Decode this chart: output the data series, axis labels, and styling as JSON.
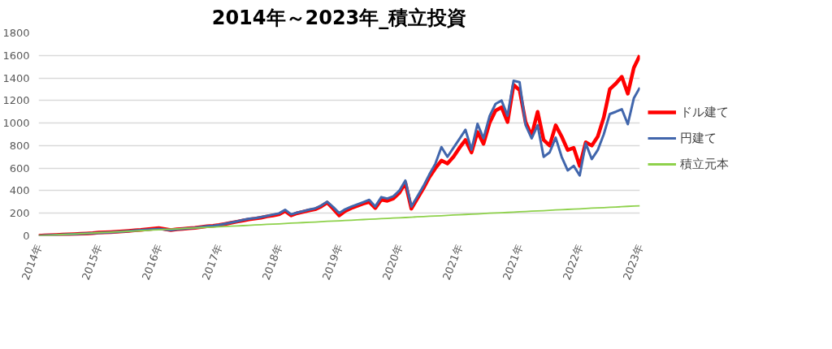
{
  "chart_data": {
    "type": "line",
    "title": "2014年～2023年_積立投資",
    "categories": [
      "2014年",
      null,
      null,
      null,
      null,
      null,
      null,
      null,
      null,
      null,
      "2015年",
      null,
      null,
      null,
      null,
      null,
      null,
      null,
      null,
      null,
      "2016年",
      null,
      null,
      null,
      null,
      null,
      null,
      null,
      null,
      null,
      "2017年",
      null,
      null,
      null,
      null,
      null,
      null,
      null,
      null,
      null,
      "2018年",
      null,
      null,
      null,
      null,
      null,
      null,
      null,
      null,
      null,
      "2019年",
      null,
      null,
      null,
      null,
      null,
      null,
      null,
      null,
      null,
      "2020年",
      null,
      null,
      null,
      null,
      null,
      null,
      null,
      null,
      null,
      "2021年",
      null,
      null,
      null,
      null,
      null,
      null,
      null,
      null,
      null,
      "2021年",
      null,
      null,
      null,
      null,
      null,
      null,
      null,
      null,
      null,
      "2022年",
      null,
      null,
      null,
      null,
      null,
      null,
      null,
      null,
      null,
      "2023年"
    ],
    "ylim": [
      0,
      1800
    ],
    "yticks": [
      0,
      200,
      400,
      600,
      800,
      1000,
      1200,
      1400,
      1600,
      1800
    ],
    "grid": "y",
    "legend": "right",
    "series": [
      {
        "name": "ドル建て",
        "color": "#ff0000",
        "values": [
          0,
          3,
          5,
          8,
          10,
          13,
          15,
          18,
          20,
          23,
          28,
          30,
          33,
          36,
          40,
          44,
          48,
          52,
          58,
          63,
          68,
          60,
          50,
          58,
          62,
          66,
          70,
          78,
          84,
          88,
          95,
          105,
          115,
          125,
          135,
          145,
          152,
          160,
          172,
          180,
          190,
          220,
          180,
          200,
          212,
          225,
          235,
          260,
          295,
          240,
          180,
          220,
          245,
          265,
          285,
          300,
          245,
          320,
          310,
          330,
          380,
          470,
          240,
          330,
          420,
          520,
          600,
          667,
          640,
          700,
          780,
          850,
          739,
          921,
          816,
          1000,
          1110,
          1140,
          1008,
          1339,
          1291,
          1008,
          888,
          1100,
          850,
          800,
          980,
          880,
          760,
          780,
          619,
          830,
          800,
          880,
          1050,
          1300,
          1350,
          1411,
          1260,
          1490,
          1600
        ]
      },
      {
        "name": "円建て",
        "color": "#4166ac",
        "values": [
          0,
          3,
          5,
          8,
          10,
          13,
          15,
          18,
          20,
          23,
          25,
          28,
          31,
          34,
          38,
          42,
          46,
          50,
          54,
          58,
          62,
          55,
          50,
          58,
          62,
          66,
          70,
          78,
          84,
          88,
          96,
          106,
          117,
          128,
          140,
          151,
          157,
          166,
          176,
          188,
          199,
          231,
          190,
          205,
          218,
          232,
          243,
          268,
          302,
          255,
          201,
          235,
          258,
          278,
          298,
          319,
          260,
          343,
          330,
          350,
          400,
          490,
          259,
          350,
          440,
          545,
          640,
          787,
          700,
          780,
          860,
          940,
          763,
          993,
          864,
          1060,
          1170,
          1200,
          1065,
          1375,
          1363,
          981,
          864,
          980,
          700,
          740,
          870,
          700,
          580,
          620,
          535,
          820,
          680,
          760,
          900,
          1080,
          1100,
          1123,
          990,
          1220,
          1315
        ]
      },
      {
        "name": "積立元本",
        "color": "#8ed14b",
        "values": [
          0,
          3,
          5,
          8,
          11,
          13,
          16,
          19,
          21,
          24,
          27,
          29,
          32,
          35,
          37,
          40,
          43,
          45,
          48,
          51,
          53,
          56,
          59,
          61,
          64,
          67,
          69,
          72,
          74,
          77,
          80,
          82,
          85,
          88,
          90,
          93,
          96,
          98,
          101,
          104,
          106,
          109,
          112,
          114,
          117,
          120,
          122,
          125,
          128,
          130,
          133,
          136,
          138,
          141,
          144,
          146,
          149,
          152,
          154,
          157,
          160,
          162,
          165,
          168,
          170,
          173,
          176,
          178,
          181,
          184,
          186,
          189,
          192,
          194,
          197,
          200,
          202,
          205,
          207,
          210,
          213,
          215,
          218,
          221,
          223,
          226,
          229,
          231,
          234,
          237,
          239,
          242,
          245,
          247,
          250,
          253,
          255,
          258,
          261,
          263,
          266
        ]
      }
    ]
  }
}
